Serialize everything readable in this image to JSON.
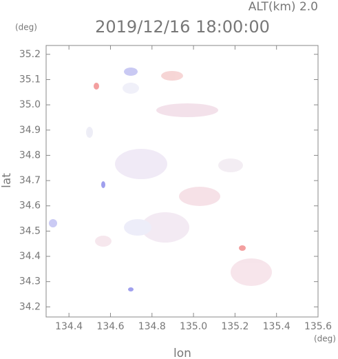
{
  "chart_data": {
    "type": "field",
    "title": "2019/12/16 18:00:00",
    "annotation": "ALT(km)  2.0",
    "x_label": "lon",
    "y_label": "lat",
    "x_unit": "(deg)",
    "y_unit": "(deg)",
    "xlim": [
      134.29,
      135.6
    ],
    "ylim": [
      34.16,
      35.235
    ],
    "xticks": [
      134.4,
      134.6,
      134.8,
      {
        "value": 135,
        "label": "135.0"
      },
      135.2,
      135.4,
      135.6
    ],
    "yticks": [
      34.2,
      34.3,
      34.4,
      34.5,
      34.6,
      34.7,
      34.8,
      34.9,
      {
        "value": 35,
        "label": "35.0"
      },
      35.1,
      35.2
    ]
  }
}
